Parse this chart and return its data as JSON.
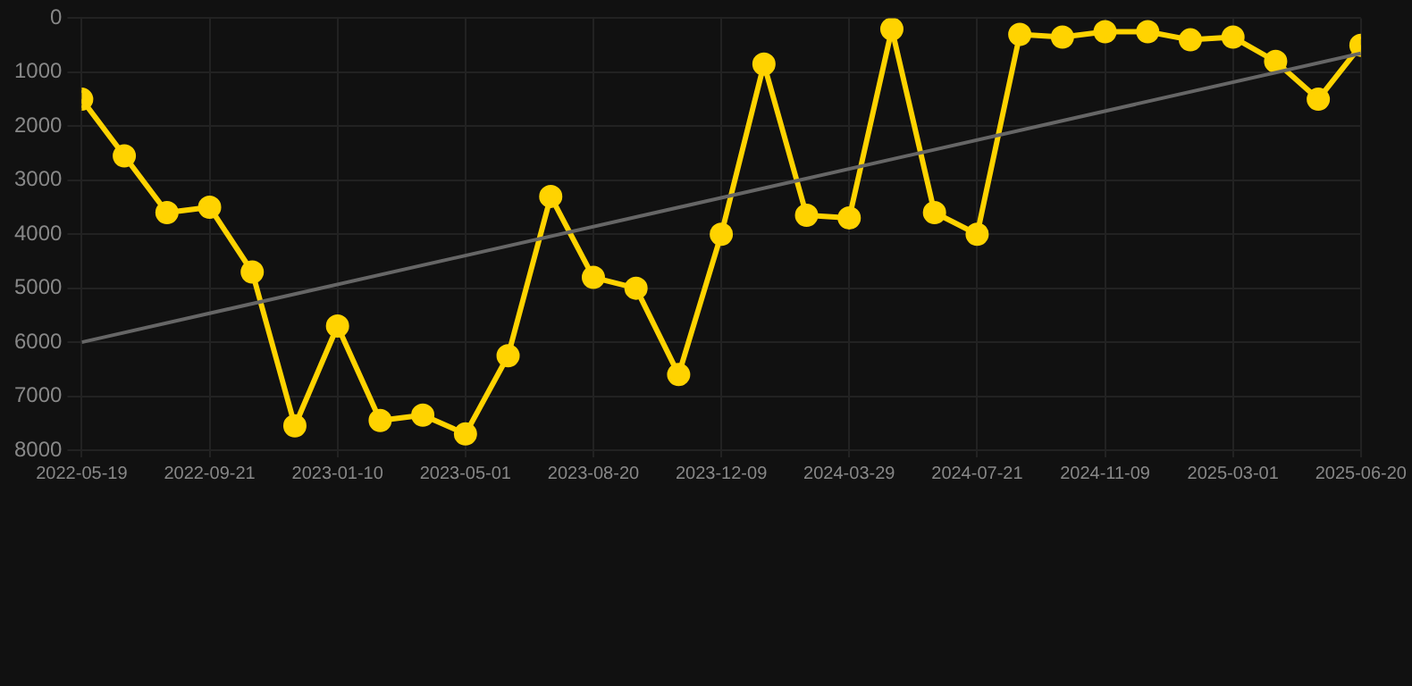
{
  "chart_data": {
    "type": "line",
    "categories": [
      "2022-05-19",
      null,
      null,
      "2022-09-21",
      null,
      null,
      "2023-01-10",
      null,
      null,
      "2023-05-01",
      null,
      null,
      "2023-08-20",
      null,
      null,
      "2023-12-09",
      null,
      null,
      "2024-03-29",
      null,
      null,
      "2024-07-21",
      null,
      null,
      "2024-11-09",
      null,
      null,
      "2025-03-01",
      null,
      null,
      "2025-06-20"
    ],
    "series": [
      {
        "color": "#ffd300",
        "marker": "circle",
        "values": [
          1500,
          2550,
          3600,
          3500,
          4700,
          7550,
          5700,
          7450,
          7350,
          7700,
          6250,
          3300,
          4800,
          5000,
          6600,
          4000,
          850,
          3650,
          3700,
          200,
          3600,
          4000,
          300,
          350,
          250,
          250,
          400,
          350,
          800,
          1500,
          500
        ]
      },
      {
        "color": "#666666",
        "marker": "none",
        "values": [
          6000,
          null,
          null,
          null,
          null,
          null,
          null,
          null,
          null,
          null,
          null,
          null,
          null,
          null,
          null,
          null,
          null,
          null,
          null,
          null,
          null,
          null,
          null,
          null,
          null,
          null,
          null,
          null,
          null,
          null,
          650
        ]
      }
    ],
    "ylim": [
      8000,
      0
    ],
    "yticks": [
      0,
      1000,
      2000,
      3000,
      4000,
      5000,
      6000,
      7000,
      8000
    ],
    "grid": true
  }
}
